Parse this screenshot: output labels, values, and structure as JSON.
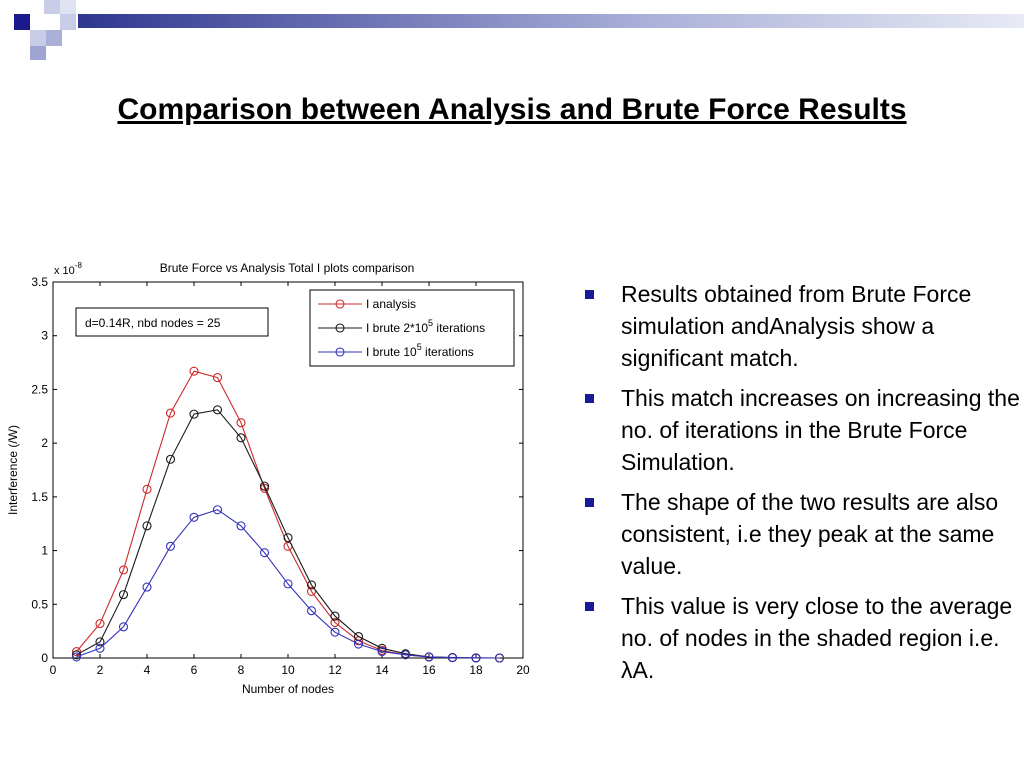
{
  "slide": {
    "title": "Comparison between Analysis and Brute Force Results",
    "bullets": [
      "Results obtained from Brute Force simulation andAnalysis show a significant match.",
      "This match increases on increasing the no. of iterations in the Brute Force Simulation.",
      "The shape of the two results are also consistent, i.e they peak at the same value.",
      "This value is very close to the average no. of nodes in the shaded region i.e. λA."
    ],
    "colors": {
      "bullet": "#1a1a99",
      "deco_dark": "#1a1a8c",
      "deco_light": "#aab0d8"
    }
  },
  "chart_data": {
    "type": "line",
    "title": "Brute Force vs Analysis Total I plots comparison",
    "xlabel": "Number of nodes",
    "ylabel": "Interference (/W)",
    "y_multiplier": "x 10",
    "y_multiplier_exp": "-8",
    "xlim": [
      0,
      20
    ],
    "ylim": [
      0,
      3.5
    ],
    "xticks": [
      "0",
      "2",
      "4",
      "6",
      "8",
      "10",
      "12",
      "14",
      "16",
      "18",
      "20"
    ],
    "yticks": [
      "0",
      "0.5",
      "1",
      "1.5",
      "2",
      "2.5",
      "3",
      "3.5"
    ],
    "annotation": "d=0.14R, nbd nodes = 25",
    "legend_position": "top-right",
    "grid": false,
    "series": [
      {
        "name": "I analysis",
        "color": "#cc2b2b",
        "x": [
          1,
          2,
          3,
          4,
          5,
          6,
          7,
          8,
          9,
          10,
          11,
          12,
          13,
          14,
          15,
          16,
          17,
          18,
          19
        ],
        "y": [
          0.06,
          0.32,
          0.82,
          1.57,
          2.28,
          2.67,
          2.61,
          2.19,
          1.58,
          1.04,
          0.62,
          0.33,
          0.16,
          0.07,
          0.03,
          0.01,
          0.004,
          0.001,
          0.0
        ]
      },
      {
        "name": "I brute 2*10",
        "name_sup": "5",
        "name_tail": " iterations",
        "color": "#1a1a1a",
        "x": [
          1,
          2,
          3,
          4,
          5,
          6,
          7,
          8,
          9,
          10,
          11,
          12,
          13,
          14,
          15,
          16,
          17,
          18,
          19
        ],
        "y": [
          0.03,
          0.15,
          0.59,
          1.23,
          1.85,
          2.27,
          2.31,
          2.05,
          1.6,
          1.12,
          0.68,
          0.39,
          0.2,
          0.09,
          0.04,
          0.01,
          0.004,
          0.001,
          0.0
        ]
      },
      {
        "name": "I brute 10",
        "name_sup": "5",
        "name_tail": " iterations",
        "color": "#3333bb",
        "x": [
          1,
          2,
          3,
          4,
          5,
          6,
          7,
          8,
          9,
          10,
          11,
          12,
          13,
          14,
          15,
          16,
          17,
          18,
          19
        ],
        "y": [
          0.01,
          0.09,
          0.29,
          0.66,
          1.04,
          1.31,
          1.38,
          1.23,
          0.98,
          0.69,
          0.44,
          0.24,
          0.13,
          0.06,
          0.03,
          0.01,
          0.003,
          0.001,
          0.0
        ]
      }
    ]
  }
}
